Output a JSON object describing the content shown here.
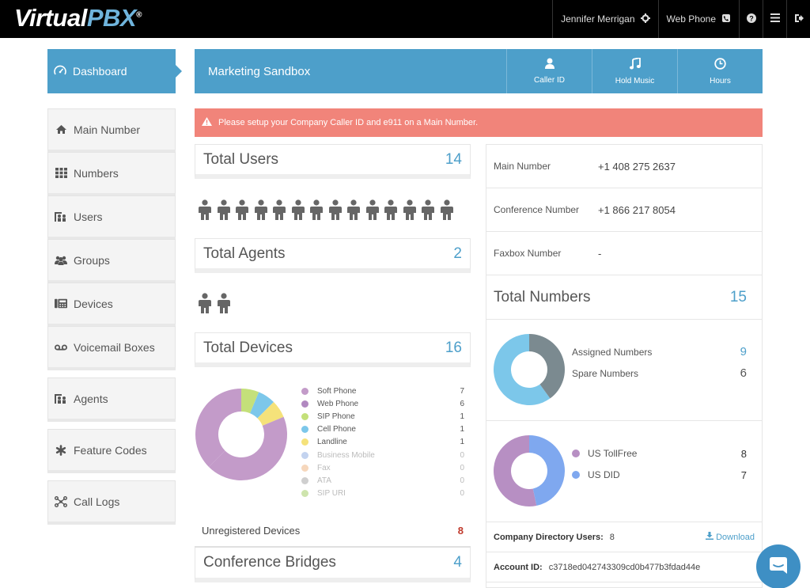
{
  "header": {
    "logo_virtual": "Virtual",
    "logo_pbx": "PBX",
    "logo_reg": "®",
    "user_name": "Jennifer Merrigan",
    "web_phone": "Web Phone"
  },
  "sidebar": {
    "dashboard": "Dashboard",
    "items": [
      {
        "label": "Main Number",
        "icon": "home-icon"
      },
      {
        "label": "Numbers",
        "icon": "grid-icon"
      },
      {
        "label": "Users",
        "icon": "users-icon"
      },
      {
        "label": "Groups",
        "icon": "groups-icon"
      },
      {
        "label": "Devices",
        "icon": "devices-icon"
      },
      {
        "label": "Voicemail Boxes",
        "icon": "voicemail-icon"
      },
      {
        "label": "Agents",
        "icon": "agents-icon"
      },
      {
        "label": "Feature Codes",
        "icon": "asterisk-icon"
      },
      {
        "label": "Call Logs",
        "icon": "network-icon"
      }
    ]
  },
  "banner": {
    "title": "Marketing Sandbox",
    "buttons": [
      {
        "label": "Caller ID",
        "icon": "person-icon"
      },
      {
        "label": "Hold Music",
        "icon": "music-icon"
      },
      {
        "label": "Hours",
        "icon": "clock-icon"
      }
    ]
  },
  "alert": {
    "text": "Please setup your Company Caller ID and e911 on a Main Number."
  },
  "stats": {
    "total_users_label": "Total Users",
    "total_users": 14,
    "total_agents_label": "Total Agents",
    "total_agents": 2,
    "total_devices_label": "Total Devices",
    "total_devices": 16,
    "conference_label": "Conference Bridges",
    "conference": 4
  },
  "devices": {
    "legend": [
      {
        "name": "Soft Phone",
        "value": 7,
        "color": "#c39bc9"
      },
      {
        "name": "Web Phone",
        "value": 6,
        "color": "#b188c0"
      },
      {
        "name": "SIP Phone",
        "value": 1,
        "color": "#c4e07a"
      },
      {
        "name": "Cell Phone",
        "value": 1,
        "color": "#7cc7ea"
      },
      {
        "name": "Landline",
        "value": 1,
        "color": "#f5e27a"
      },
      {
        "name": "Business Mobile",
        "value": 0,
        "color": "#a9c0e8"
      },
      {
        "name": "Fax",
        "value": 0,
        "color": "#f2c6a0"
      },
      {
        "name": "ATA",
        "value": 0,
        "color": "#bbbbbb"
      },
      {
        "name": "SIP URI",
        "value": 0,
        "color": "#b9d98a"
      }
    ],
    "unregistered_label": "Unregistered Devices",
    "unregistered": 8
  },
  "info": {
    "main_number_label": "Main Number",
    "main_number": "+1 408 275 2637",
    "conference_number_label": "Conference Number",
    "conference_number": "+1 866 217 8054",
    "faxbox_label": "Faxbox Number",
    "faxbox": "-"
  },
  "numbers": {
    "total_label": "Total Numbers",
    "total": 15,
    "assigned_label": "Assigned Numbers",
    "assigned": 9,
    "spare_label": "Spare Numbers",
    "spare": 6,
    "assigned_color": "#7cc7ea",
    "spare_color": "#7b8a90",
    "tollfree_label": "US TollFree",
    "tollfree": 8,
    "did_label": "US DID",
    "did": 7,
    "tollfree_color": "#b78fc3",
    "did_color": "#7fa8ef"
  },
  "footer": {
    "directory_label": "Company Directory Users:",
    "directory_value": "8",
    "download": "Download",
    "account_label": "Account ID:",
    "account_value": "c3718ed042743309cd0b477b3fdad44e"
  }
}
